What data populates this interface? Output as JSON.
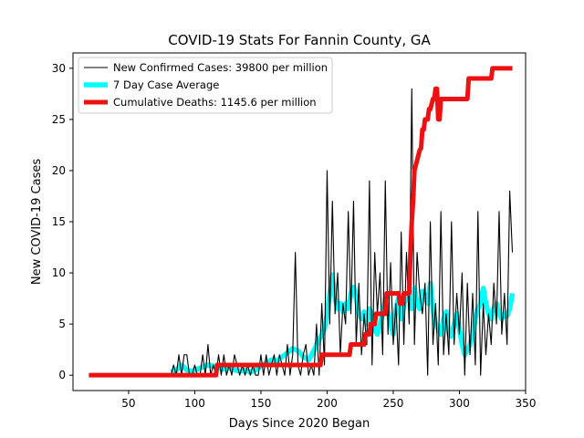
{
  "chart_data": {
    "type": "line",
    "title": "COVID-19 Stats For Fannin County, GA",
    "xlabel": "Days Since 2020 Began",
    "ylabel": "New COVID-19 Cases",
    "xlim": [
      8,
      350
    ],
    "ylim": [
      -1.5,
      31.5
    ],
    "xticks": [
      50,
      100,
      150,
      200,
      250,
      300,
      350
    ],
    "yticks": [
      0,
      5,
      10,
      15,
      20,
      25,
      30
    ],
    "grid": false,
    "legend_position": "top-left",
    "series": [
      {
        "name": "New Confirmed Cases: 39800 per million",
        "color": "#000000",
        "x": [
          20,
          30,
          40,
          50,
          60,
          70,
          80,
          82,
          84,
          86,
          88,
          90,
          92,
          94,
          96,
          98,
          100,
          102,
          104,
          106,
          108,
          110,
          112,
          114,
          116,
          118,
          120,
          122,
          124,
          126,
          128,
          130,
          132,
          134,
          136,
          138,
          140,
          142,
          144,
          146,
          148,
          150,
          152,
          154,
          156,
          158,
          160,
          162,
          164,
          166,
          168,
          170,
          172,
          174,
          176,
          178,
          180,
          182,
          184,
          186,
          188,
          190,
          192,
          194,
          196,
          198,
          200,
          202,
          204,
          206,
          208,
          210,
          212,
          214,
          216,
          218,
          220,
          222,
          224,
          226,
          228,
          230,
          232,
          234,
          236,
          238,
          240,
          242,
          244,
          246,
          248,
          250,
          252,
          254,
          256,
          258,
          260,
          262,
          264,
          266,
          268,
          270,
          272,
          274,
          276,
          278,
          280,
          282,
          284,
          286,
          288,
          290,
          292,
          294,
          296,
          298,
          300,
          302,
          304,
          306,
          308,
          310,
          312,
          314,
          316,
          318,
          320,
          322,
          324,
          326,
          328,
          330,
          332,
          334,
          336,
          338,
          340
        ],
        "y": [
          0,
          0,
          0,
          0,
          0,
          0,
          0,
          0,
          1,
          0,
          2,
          0,
          2,
          2,
          0,
          0,
          1,
          0,
          0,
          2,
          0,
          3,
          0,
          1,
          0,
          2,
          0,
          2,
          0,
          1,
          0,
          2,
          1,
          0,
          1,
          0,
          1,
          0,
          1,
          0,
          0,
          2,
          0,
          2,
          0,
          1,
          2,
          0,
          2,
          1,
          0,
          3,
          0,
          2,
          12,
          1,
          0,
          2,
          3,
          0,
          1,
          0,
          5,
          0,
          7,
          1,
          20,
          5,
          17,
          6,
          10,
          2,
          7,
          5,
          16,
          6,
          17,
          3,
          9,
          2,
          6,
          3,
          19,
          1,
          12,
          6,
          10,
          2,
          19,
          4,
          11,
          3,
          7,
          1,
          14,
          3,
          12,
          5,
          28,
          3,
          12,
          8,
          6,
          9,
          0,
          15,
          3,
          7,
          1,
          16,
          2,
          6,
          2,
          15,
          3,
          8,
          4,
          10,
          0,
          9,
          2,
          8,
          1,
          16,
          0,
          7,
          2,
          6,
          3,
          9,
          5,
          16,
          4,
          8,
          3,
          18,
          12
        ]
      },
      {
        "name": "7 Day Case Average",
        "color": "#00ffff",
        "x": [
          82,
          86,
          90,
          94,
          98,
          102,
          106,
          110,
          114,
          118,
          122,
          126,
          130,
          134,
          138,
          142,
          146,
          150,
          154,
          158,
          162,
          166,
          170,
          174,
          178,
          182,
          186,
          190,
          194,
          198,
          200,
          202,
          204,
          206,
          208,
          210,
          212,
          214,
          216,
          218,
          220,
          222,
          224,
          226,
          228,
          230,
          232,
          234,
          236,
          238,
          240,
          242,
          244,
          246,
          248,
          250,
          252,
          254,
          256,
          258,
          260,
          262,
          264,
          266,
          268,
          270,
          272,
          274,
          276,
          278,
          280,
          282,
          284,
          286,
          288,
          290,
          292,
          294,
          296,
          298,
          300,
          302,
          304,
          306,
          308,
          310,
          312,
          314,
          316,
          318,
          320,
          322,
          324,
          326,
          328,
          330,
          332,
          334,
          336,
          338,
          340
        ],
        "y": [
          0.3,
          0.5,
          1.0,
          0.5,
          0.4,
          0.6,
          0.8,
          1.0,
          0.9,
          0.7,
          0.6,
          0.7,
          0.5,
          0.4,
          0.5,
          0.3,
          0.5,
          0.9,
          1.2,
          1.5,
          1.4,
          1.8,
          2.2,
          2.6,
          2.4,
          1.8,
          1.5,
          2.4,
          3.5,
          4.5,
          6.0,
          8.0,
          9.8,
          7.5,
          6.5,
          7.0,
          6.2,
          7.0,
          6.5,
          8.0,
          8.6,
          7.5,
          6.0,
          5.5,
          6.2,
          5.0,
          6.5,
          5.8,
          4.5,
          4.0,
          5.0,
          6.0,
          7.5,
          6.2,
          5.0,
          4.0,
          6.5,
          7.5,
          5.5,
          6.8,
          8.0,
          7.5,
          6.5,
          8.5,
          7.0,
          6.5,
          8.2,
          7.8,
          7.0,
          9.0,
          6.5,
          5.0,
          4.5,
          4.0,
          5.5,
          6.2,
          4.0,
          3.8,
          5.0,
          6.0,
          4.5,
          3.0,
          2.0,
          2.5,
          3.0,
          4.0,
          5.5,
          6.5,
          7.0,
          8.5,
          7.0,
          6.0,
          5.5,
          6.5,
          7.0,
          6.0,
          5.5,
          6.0,
          5.8,
          6.5,
          8.0
        ]
      },
      {
        "name": "Cumulative Deaths: 1145.6 per million",
        "color": "#ee1111",
        "x": [
          20,
          116,
          117,
          195,
          196,
          217,
          218,
          228,
          229,
          232,
          233,
          236,
          237,
          244,
          245,
          254,
          255,
          257,
          258,
          262,
          263,
          264,
          265,
          266,
          267,
          268,
          270,
          271,
          272,
          273,
          274,
          276,
          277,
          278,
          280,
          281,
          282,
          283,
          284,
          285,
          286,
          287,
          288,
          306,
          307,
          324,
          325,
          340
        ],
        "y": [
          0,
          0,
          1,
          1,
          2,
          2,
          3,
          3,
          4,
          4,
          5,
          5,
          6,
          6,
          8,
          8,
          7,
          7,
          8,
          8,
          12,
          15,
          17,
          20,
          20.5,
          21,
          22,
          22.2,
          24,
          24,
          25,
          25,
          26,
          26,
          27,
          27,
          28,
          28,
          25,
          25,
          27,
          27,
          27,
          27,
          29,
          29,
          30,
          30
        ]
      }
    ]
  }
}
